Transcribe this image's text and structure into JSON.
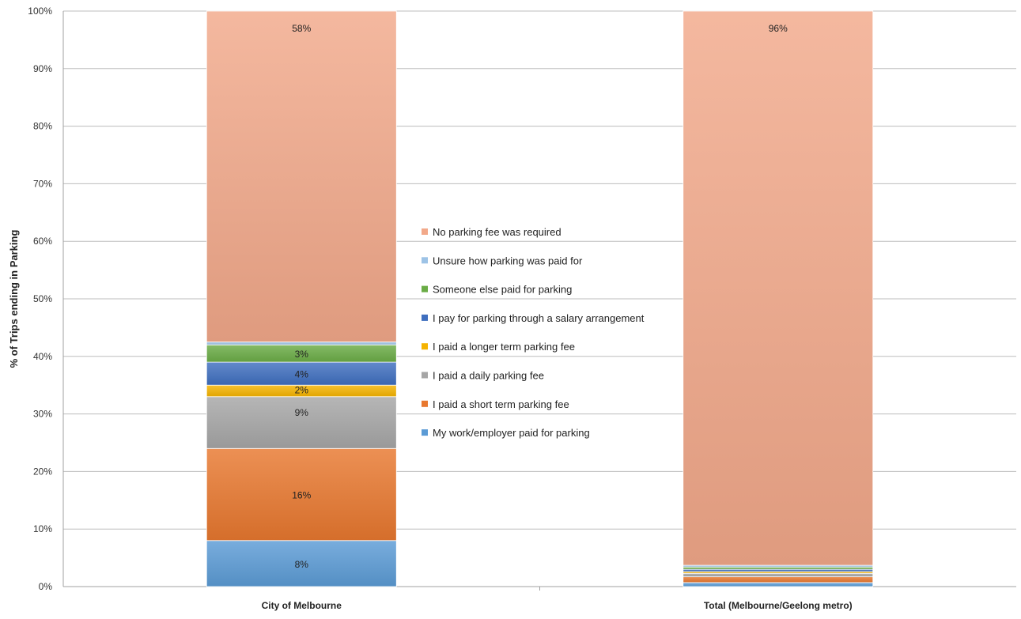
{
  "chart_data": {
    "type": "bar",
    "stacked": true,
    "ylabel": "% of Trips ending in Parking",
    "xlabel": "",
    "ylim": [
      0,
      100
    ],
    "y_ticks": [
      "0%",
      "10%",
      "20%",
      "30%",
      "40%",
      "50%",
      "60%",
      "70%",
      "80%",
      "90%",
      "100%"
    ],
    "grid": true,
    "legend_placement": "center",
    "categories": [
      "City of Melbourne",
      "Total (Melbourne/Geelong metro)"
    ],
    "series": [
      {
        "name": "My work/employer paid for parking",
        "color": "#5b9bd5",
        "values": [
          8,
          0.7
        ],
        "labels": [
          "8%",
          ""
        ]
      },
      {
        "name": "I paid a short term parking fee",
        "color": "#e8782f",
        "values": [
          16,
          1.0
        ],
        "labels": [
          "16%",
          ""
        ]
      },
      {
        "name": "I paid a daily parking fee",
        "color": "#a6a6a6",
        "values": [
          9,
          0.6
        ],
        "labels": [
          "9%",
          ""
        ]
      },
      {
        "name": "I paid a longer term parking fee",
        "color": "#f5b300",
        "values": [
          2,
          0.3
        ],
        "labels": [
          "2%",
          ""
        ]
      },
      {
        "name": "I pay for parking through a salary arrangement",
        "color": "#3f6fbf",
        "values": [
          4,
          0.4
        ],
        "labels": [
          "4%",
          ""
        ]
      },
      {
        "name": "Someone else paid for parking",
        "color": "#6aac46",
        "values": [
          3,
          0.4
        ],
        "labels": [
          "3%",
          ""
        ]
      },
      {
        "name": "Unsure how parking was paid for",
        "color": "#9dc3e6",
        "values": [
          0.5,
          0.3
        ],
        "labels": [
          "",
          ""
        ]
      },
      {
        "name": "No parking fee was required",
        "color": "#f2a98a",
        "values": [
          57.5,
          96.3
        ],
        "labels": [
          "58%",
          "96%"
        ]
      }
    ]
  }
}
